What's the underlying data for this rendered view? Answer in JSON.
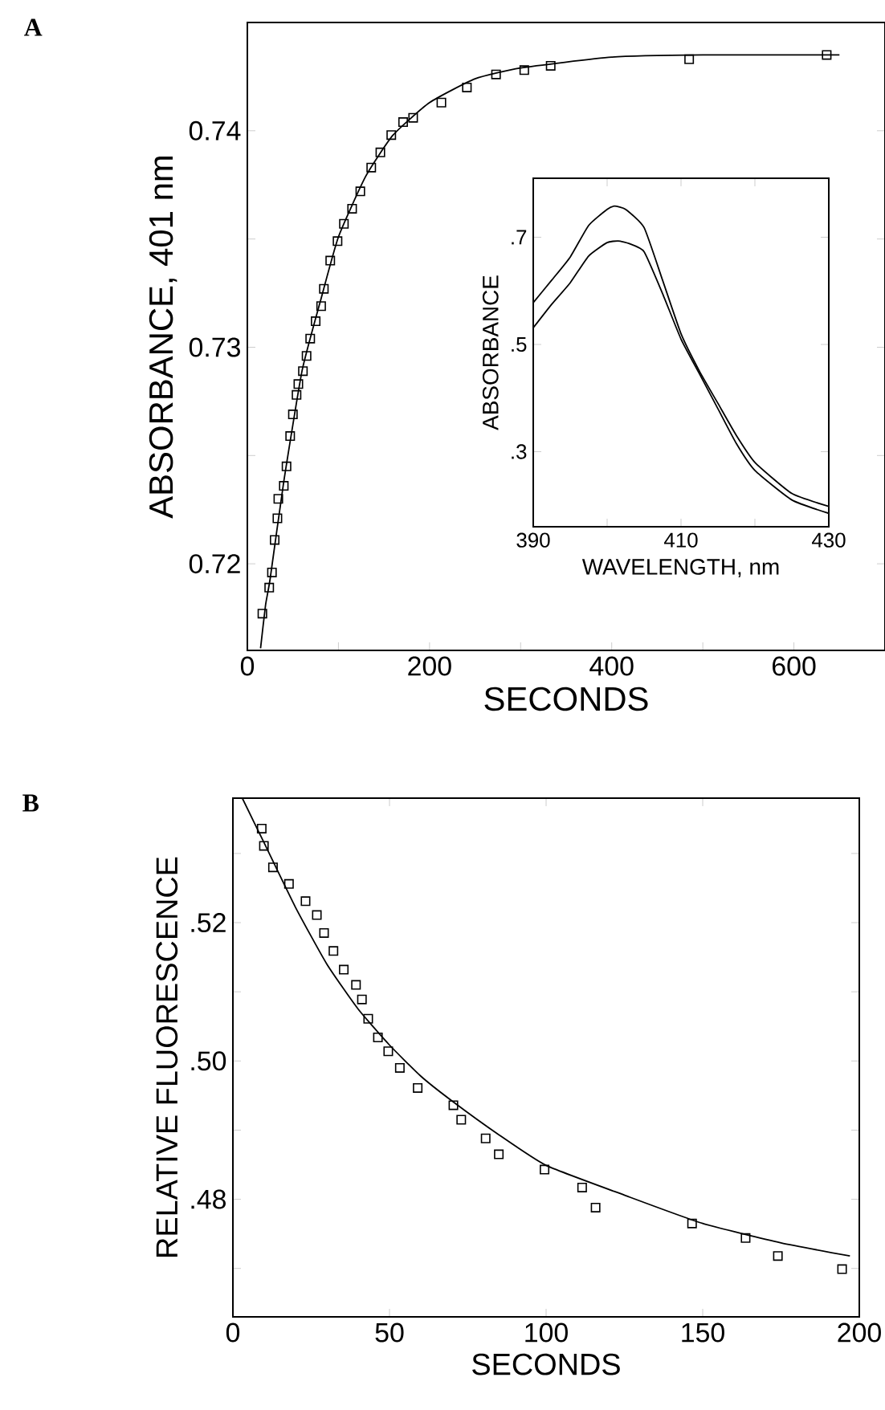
{
  "chart_data": [
    {
      "type": "scatter",
      "title": "A",
      "xlabel": "SECONDS",
      "ylabel": "ABSORBANCE, 401 nm",
      "xlim": [
        0,
        700
      ],
      "ylim": [
        0.716,
        0.745
      ],
      "xticks": [
        0,
        {
          "value": 100,
          "label": null
        },
        200,
        {
          "value": 300,
          "label": null
        },
        400,
        {
          "value": 500,
          "label": null
        },
        600
      ],
      "yticks": [
        0.72,
        {
          "value": 0.725,
          "label": null
        },
        0.73,
        {
          "value": 0.735,
          "label": null
        },
        0.74
      ],
      "series": [
        {
          "type": "scatter",
          "marker": "square",
          "color": "#000000",
          "x": [
            16.5,
            24,
            27,
            30,
            33,
            34,
            40,
            43,
            47,
            50,
            54,
            56,
            61,
            65,
            69,
            75,
            81,
            84,
            91,
            99,
            106,
            115,
            124,
            136,
            146,
            158,
            171,
            182,
            213,
            241,
            273,
            304,
            333,
            485,
            636
          ],
          "values": [
            0.7177,
            0.7189,
            0.7196,
            0.7211,
            0.7221,
            0.723,
            0.7236,
            0.7245,
            0.7259,
            0.7269,
            0.7278,
            0.7283,
            0.7289,
            0.7296,
            0.7304,
            0.7312,
            0.7319,
            0.7327,
            0.734,
            0.7349,
            0.7357,
            0.7364,
            0.7372,
            0.7383,
            0.739,
            0.7398,
            0.7404,
            0.7406,
            0.7413,
            0.742,
            0.7426,
            0.7428,
            0.743,
            0.7433,
            0.7435
          ]
        },
        {
          "type": "line",
          "marker": "none",
          "color": "#000000",
          "x": [
            14.5,
            20,
            25,
            40,
            60,
            80,
            100,
            130,
            160,
            200,
            250,
            300,
            400,
            500,
            650
          ],
          "values": [
            0.7161,
            0.7181,
            0.7193,
            0.7238,
            0.7289,
            0.7321,
            0.7351,
            0.7379,
            0.7398,
            0.7413,
            0.7424,
            0.7429,
            0.7434,
            0.7435,
            0.7435
          ]
        }
      ]
    },
    {
      "type": "line",
      "xlabel": "WAVELENGTH, nm",
      "ylabel": "ABSORBANCE",
      "xlim": [
        390,
        430
      ],
      "ylim": [
        0.16,
        0.81
      ],
      "xticks": [
        390,
        {
          "value": 400,
          "label": null
        },
        410,
        {
          "value": 420,
          "label": null
        },
        430
      ],
      "yticks": [
        {
          "value": 0.3,
          "label": ".3"
        },
        {
          "value": 0.5,
          "label": ".5"
        },
        {
          "value": 0.7,
          "label": ".7"
        }
      ],
      "series": [
        {
          "color": "#000000",
          "x": [
            390,
            392.5,
            395,
            397.5,
            400,
            401,
            402.5,
            405,
            407.5,
            410,
            412.5,
            415,
            417.5,
            420,
            425,
            430
          ],
          "values": [
            0.578,
            0.62,
            0.663,
            0.722,
            0.752,
            0.758,
            0.752,
            0.718,
            0.62,
            0.52,
            0.45,
            0.39,
            0.33,
            0.28,
            0.222,
            0.198
          ]
        },
        {
          "color": "#000000",
          "x": [
            390,
            392.5,
            395,
            397.5,
            400,
            401.5,
            403,
            405,
            407.5,
            410,
            412.5,
            415,
            417.5,
            420,
            425,
            430
          ],
          "values": [
            0.531,
            0.575,
            0.615,
            0.665,
            0.69,
            0.693,
            0.688,
            0.673,
            0.595,
            0.51,
            0.445,
            0.38,
            0.315,
            0.265,
            0.21,
            0.185
          ]
        }
      ]
    },
    {
      "type": "scatter",
      "title": "B",
      "xlabel": "SECONDS",
      "ylabel": "RELATIVE FLUORESCENCE",
      "xlim": [
        0,
        200
      ],
      "ylim": [
        0.463,
        0.538
      ],
      "xticks": [
        0,
        50,
        100,
        150,
        200
      ],
      "yticks": [
        {
          "value": 0.47,
          "label": null
        },
        {
          "value": 0.48,
          "label": ".48"
        },
        {
          "value": 0.49,
          "label": null
        },
        {
          "value": 0.5,
          "label": ".50"
        },
        {
          "value": 0.51,
          "label": null
        },
        {
          "value": 0.52,
          "label": ".52"
        },
        {
          "value": 0.53,
          "label": null
        }
      ],
      "series": [
        {
          "type": "scatter",
          "marker": "square",
          "color": "#000000",
          "x": [
            9.2,
            9.9,
            12.8,
            17.9,
            23.2,
            26.8,
            29.1,
            32.1,
            35.4,
            39.3,
            41.2,
            43.2,
            46.3,
            49.6,
            53.3,
            59.0,
            70.4,
            72.9,
            80.7,
            84.9,
            99.5,
            111.5,
            115.8,
            146.6,
            163.7,
            174.0,
            194.5
          ],
          "values": [
            0.5336,
            0.5311,
            0.528,
            0.5256,
            0.5231,
            0.5211,
            0.5185,
            0.5159,
            0.5132,
            0.511,
            0.5089,
            0.5061,
            0.5034,
            0.5014,
            0.499,
            0.4961,
            0.4936,
            0.4915,
            0.4888,
            0.4865,
            0.4843,
            0.4817,
            0.4788,
            0.4765,
            0.4744,
            0.4718,
            0.4699
          ]
        },
        {
          "type": "line",
          "marker": "none",
          "color": "#000000",
          "x": [
            3,
            10,
            20,
            30,
            40,
            50,
            60,
            70,
            85,
            100,
            125,
            150,
            175,
            197
          ],
          "values": [
            0.538,
            0.5315,
            0.5222,
            0.514,
            0.5075,
            0.5023,
            0.4978,
            0.4942,
            0.4893,
            0.4849,
            0.4806,
            0.4765,
            0.4737,
            0.4718
          ]
        }
      ]
    }
  ]
}
